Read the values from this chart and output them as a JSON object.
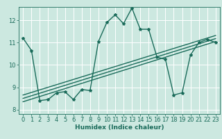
{
  "xlabel": "Humidex (Indice chaleur)",
  "bg_color": "#cce8e0",
  "grid_color": "#ffffff",
  "line_color": "#1a6b5a",
  "xlim": [
    -0.5,
    23.5
  ],
  "ylim": [
    7.8,
    12.6
  ],
  "xticks": [
    0,
    1,
    2,
    3,
    4,
    5,
    6,
    7,
    8,
    9,
    10,
    11,
    12,
    13,
    14,
    15,
    16,
    17,
    18,
    19,
    20,
    21,
    22,
    23
  ],
  "yticks": [
    8,
    9,
    10,
    11,
    12
  ],
  "main_x": [
    0,
    1,
    2,
    3,
    4,
    5,
    6,
    7,
    8,
    9,
    10,
    11,
    12,
    13,
    14,
    15,
    16,
    17,
    18,
    19,
    20,
    21,
    22,
    23
  ],
  "main_y": [
    11.2,
    10.65,
    8.4,
    8.45,
    8.75,
    8.8,
    8.45,
    8.9,
    8.85,
    11.05,
    11.9,
    12.25,
    11.85,
    12.55,
    11.6,
    11.6,
    10.35,
    10.25,
    8.65,
    8.75,
    10.45,
    11.0,
    11.15,
    11.0
  ],
  "reg_lines": [
    {
      "x": [
        0,
        23
      ],
      "y": [
        8.35,
        11.05
      ]
    },
    {
      "x": [
        0,
        23
      ],
      "y": [
        8.5,
        11.18
      ]
    },
    {
      "x": [
        0,
        23
      ],
      "y": [
        8.65,
        11.32
      ]
    }
  ],
  "marker_size": 3.0,
  "line_width": 1.0,
  "font_size": 6.5
}
